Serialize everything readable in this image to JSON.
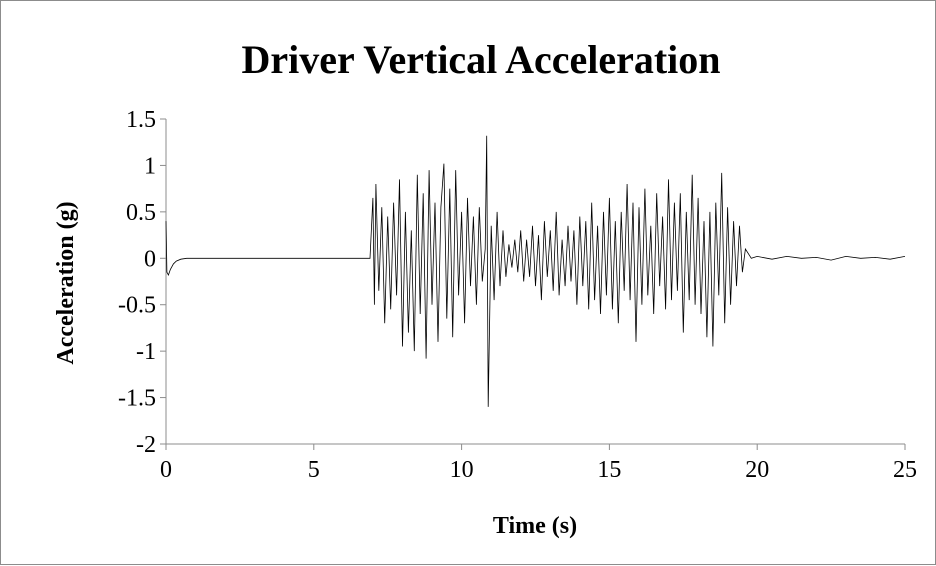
{
  "chart_data": {
    "type": "line",
    "title": "Driver Vertical Acceleration",
    "xlabel": "Time (s)",
    "ylabel": "Acceleration (g)",
    "xlim": [
      0,
      25
    ],
    "ylim": [
      -2,
      1.5
    ],
    "x_ticks": [
      0,
      5,
      10,
      15,
      20,
      25
    ],
    "y_ticks": [
      1.5,
      1,
      0.5,
      0,
      -0.5,
      -1,
      -1.5,
      -2
    ],
    "x_tick_labels": [
      "0",
      "5",
      "10",
      "15",
      "20",
      "25"
    ],
    "y_tick_labels": [
      "1.5",
      "1",
      "0.5",
      "0",
      "-0.5",
      "-1",
      "-1.5",
      "-2"
    ],
    "grid": false,
    "legend": "none",
    "line_color": "#000000",
    "series": [
      {
        "x": [
          0,
          0.03,
          0.08,
          0.15,
          0.25,
          0.35,
          0.5,
          0.7,
          1.0,
          2.0,
          3.0,
          4.0,
          5.0,
          6.0,
          6.9,
          7.0,
          7.05,
          7.1,
          7.2,
          7.3,
          7.4,
          7.5,
          7.6,
          7.7,
          7.8,
          7.9,
          8.0,
          8.1,
          8.2,
          8.3,
          8.4,
          8.5,
          8.6,
          8.7,
          8.8,
          8.9,
          9.0,
          9.1,
          9.2,
          9.3,
          9.4,
          9.5,
          9.6,
          9.7,
          9.8,
          9.9,
          10.0,
          10.1,
          10.2,
          10.3,
          10.4,
          10.5,
          10.6,
          10.7,
          10.8,
          10.85,
          10.9,
          11.0,
          11.1,
          11.2,
          11.3,
          11.4,
          11.5,
          11.6,
          11.7,
          11.8,
          11.9,
          12.0,
          12.1,
          12.2,
          12.3,
          12.4,
          12.5,
          12.6,
          12.7,
          12.8,
          12.9,
          13.0,
          13.1,
          13.2,
          13.3,
          13.4,
          13.5,
          13.6,
          13.7,
          13.8,
          13.9,
          14.0,
          14.1,
          14.2,
          14.3,
          14.4,
          14.5,
          14.6,
          14.7,
          14.8,
          14.9,
          15.0,
          15.1,
          15.2,
          15.3,
          15.4,
          15.5,
          15.6,
          15.7,
          15.8,
          15.9,
          16.0,
          16.1,
          16.2,
          16.3,
          16.4,
          16.5,
          16.6,
          16.7,
          16.8,
          16.9,
          17.0,
          17.1,
          17.2,
          17.3,
          17.4,
          17.5,
          17.6,
          17.7,
          17.8,
          17.9,
          18.0,
          18.1,
          18.2,
          18.3,
          18.4,
          18.5,
          18.6,
          18.7,
          18.8,
          18.9,
          19.0,
          19.1,
          19.2,
          19.3,
          19.4,
          19.5,
          19.6,
          19.8,
          20.0,
          20.5,
          21.0,
          21.5,
          22.0,
          22.5,
          23.0,
          23.5,
          24.0,
          24.5,
          25.0
        ],
        "y": [
          0.4,
          -0.15,
          -0.18,
          -0.12,
          -0.06,
          -0.03,
          -0.01,
          0,
          0,
          0,
          0,
          0,
          0,
          0,
          0,
          0.65,
          -0.5,
          0.8,
          -0.35,
          0.55,
          -0.7,
          0.45,
          -0.55,
          0.6,
          -0.4,
          0.85,
          -0.95,
          0.5,
          -0.8,
          0.3,
          -1.0,
          0.9,
          -0.6,
          0.7,
          -1.08,
          0.95,
          -0.5,
          0.6,
          -0.9,
          0.55,
          1.02,
          -0.65,
          0.75,
          -0.85,
          0.95,
          -0.4,
          0.5,
          -0.7,
          0.65,
          -0.3,
          0.45,
          -0.5,
          0.55,
          -0.25,
          0.1,
          1.32,
          -1.6,
          0.35,
          -0.45,
          0.5,
          -0.3,
          0.3,
          -0.2,
          0.15,
          -0.1,
          0.2,
          -0.15,
          0.3,
          -0.25,
          0.2,
          -0.2,
          0.35,
          -0.3,
          0.25,
          -0.45,
          0.4,
          -0.2,
          0.3,
          -0.35,
          0.5,
          -0.4,
          0.2,
          -0.3,
          0.35,
          -0.25,
          0.3,
          -0.5,
          0.45,
          -0.3,
          0.4,
          -0.55,
          0.6,
          -0.45,
          0.35,
          -0.6,
          0.5,
          -0.4,
          0.65,
          -0.55,
          0.4,
          -0.7,
          0.5,
          -0.35,
          0.8,
          -0.45,
          0.6,
          -0.9,
          0.55,
          -0.5,
          0.75,
          -0.4,
          0.35,
          -0.6,
          0.7,
          -0.3,
          0.45,
          -0.55,
          0.85,
          -0.45,
          0.6,
          -0.35,
          0.7,
          -0.8,
          0.5,
          -0.45,
          0.9,
          -0.5,
          0.65,
          -0.6,
          0.4,
          -0.85,
          0.5,
          -0.95,
          0.6,
          -0.4,
          0.92,
          -0.7,
          0.55,
          -0.5,
          0.4,
          -0.3,
          0.35,
          -0.15,
          0.1,
          0,
          0.02,
          -0.01,
          0.02,
          0,
          0.01,
          -0.02,
          0.02,
          0,
          0.01,
          -0.01,
          0.02
        ]
      }
    ]
  }
}
